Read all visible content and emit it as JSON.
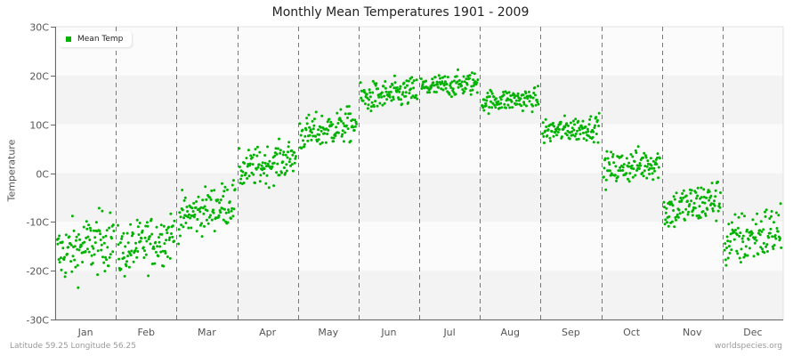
{
  "title": "Monthly Mean Temperatures 1901 - 2009",
  "footer": {
    "left": "Latitude 59.25 Longitude 56.25",
    "right": "worldspecies.org"
  },
  "legend": {
    "label": "Mean Temp",
    "color": "#00b300"
  },
  "colors": {
    "point": "#00b300",
    "band_dark": "#f3f3f3",
    "band_light": "#fbfbfb",
    "grid_dash": "#777777",
    "axis": "#666666"
  },
  "chart_data": {
    "type": "scatter",
    "title": "Monthly Mean Temperatures 1901 - 2009",
    "xlabel": "",
    "ylabel": "Temperature",
    "ylim": [
      -30,
      30
    ],
    "yticks": [
      "30C",
      "20C",
      "10C",
      "0C",
      "-10C",
      "-20C",
      "-30C"
    ],
    "ytick_values": [
      30,
      20,
      10,
      0,
      -10,
      -20,
      -30
    ],
    "categories": [
      "Jan",
      "Feb",
      "Mar",
      "Apr",
      "May",
      "Jun",
      "Jul",
      "Aug",
      "Sep",
      "Oct",
      "Nov",
      "Dec"
    ],
    "legend_position": "top-left",
    "grid": "alternating horizontal bands, dashed vertical month separators",
    "points_per_month": 109,
    "series": [
      {
        "name": "Mean Temp",
        "monthly_summary": [
          {
            "month": "Jan",
            "mean": -15.0,
            "min": -26.0,
            "max": -6.0,
            "std": 3.8,
            "trend": 3.5
          },
          {
            "month": "Feb",
            "mean": -14.5,
            "min": -22.5,
            "max": -6.0,
            "std": 3.3,
            "trend": 4.0
          },
          {
            "month": "Mar",
            "mean": -7.5,
            "min": -14.5,
            "max": 0.0,
            "std": 2.8,
            "trend": 3.5
          },
          {
            "month": "Apr",
            "mean": 1.8,
            "min": -4.0,
            "max": 7.0,
            "std": 2.4,
            "trend": 3.0
          },
          {
            "month": "May",
            "mean": 9.0,
            "min": 3.0,
            "max": 14.5,
            "std": 2.2,
            "trend": 2.5
          },
          {
            "month": "Jun",
            "mean": 16.0,
            "min": 10.5,
            "max": 20.5,
            "std": 1.9,
            "trend": 1.5
          },
          {
            "month": "Jul",
            "mean": 18.0,
            "min": 14.5,
            "max": 22.0,
            "std": 1.5,
            "trend": 1.0
          },
          {
            "month": "Aug",
            "mean": 15.0,
            "min": 11.5,
            "max": 19.0,
            "std": 1.4,
            "trend": 0.5
          },
          {
            "month": "Sep",
            "mean": 9.0,
            "min": 4.5,
            "max": 13.0,
            "std": 1.6,
            "trend": 1.0
          },
          {
            "month": "Oct",
            "mean": 1.5,
            "min": -5.0,
            "max": 6.0,
            "std": 2.1,
            "trend": 1.5
          },
          {
            "month": "Nov",
            "mean": -6.5,
            "min": -15.5,
            "max": 0.5,
            "std": 2.7,
            "trend": 2.5
          },
          {
            "month": "Dec",
            "mean": -13.0,
            "min": -24.0,
            "max": -5.5,
            "std": 3.5,
            "trend": 3.0
          }
        ]
      }
    ]
  }
}
